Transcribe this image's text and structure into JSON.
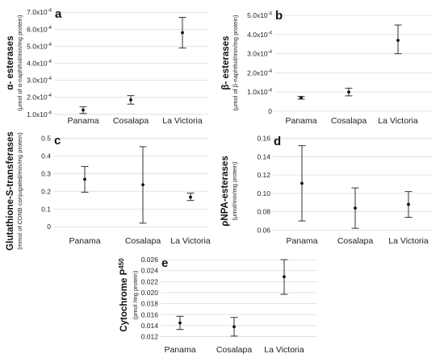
{
  "chart_data": [
    {
      "panel": "a",
      "type": "scatter",
      "ylabel": "α- esterases",
      "ylabel_unit": "(μmol of α-naphthol/min/mg protein)",
      "categories": [
        "Panama",
        "Cosalapa",
        "La Victoria"
      ],
      "ylim": [
        8e-05,
        7e-05
      ],
      "ticks": [
        0.0001,
        0.0002,
        0.0003,
        0.0004,
        0.0005,
        0.0006,
        0.0007
      ],
      "tick_labels": [
        "1.0x10-4",
        "2.0x10-4",
        "3.0x10-4",
        "4.0x10-4",
        "5.0x10-4",
        "6.0x10-4",
        "7.0x10-4"
      ],
      "means": [
        0.000125,
        0.000185,
        0.00058
      ],
      "lower": [
        0.000105,
        0.00016,
        0.00049
      ],
      "upper": [
        0.000145,
        0.00021,
        0.00067
      ],
      "grid": true
    },
    {
      "panel": "b",
      "type": "scatter",
      "ylabel": "β- esterases",
      "ylabel_unit": "(μmol of β-naphthol/min/mg protein)",
      "categories": [
        "Panama",
        "Cosalapa",
        "La Victoria"
      ],
      "ylim": [
        -3e-05,
        0.00053
      ],
      "ticks": [
        0,
        0.0001,
        0.0002,
        0.0003,
        0.0004,
        0.0005
      ],
      "tick_labels": [
        "0",
        "1.0x10-4",
        "2.0x10-4",
        "3.0x10-4",
        "4.0x10-4",
        "5.0x10-4"
      ],
      "means": [
        7e-05,
        0.0001,
        0.00037
      ],
      "lower": [
        6.3e-05,
        8e-05,
        0.0003
      ],
      "upper": [
        7.7e-05,
        0.00012,
        0.00045
      ],
      "grid": true
    },
    {
      "panel": "c",
      "type": "scatter",
      "ylabel": "Glutathione-S-transferases",
      "ylabel_unit": "(mmol of CDNB conjugated/min/mg protein)",
      "categories": [
        "Panama",
        "Cosalapa",
        "La Victoria"
      ],
      "ylim": [
        -0.04,
        0.52
      ],
      "ticks": [
        0,
        0.1,
        0.2,
        0.3,
        0.4,
        0.5
      ],
      "tick_labels": [
        "0",
        "0.1",
        "0.2",
        "0.3",
        "0.4",
        "0.5"
      ],
      "means": [
        0.268,
        0.237,
        0.167
      ],
      "lower": [
        0.195,
        0.02,
        0.148
      ],
      "upper": [
        0.34,
        0.452,
        0.19
      ],
      "grid": true
    },
    {
      "panel": "d",
      "type": "scatter",
      "ylabel": "ρNPA-esterases",
      "ylabel_unit": "(μmol/min/mg protein)",
      "categories": [
        "Panama",
        "Cosalapa",
        "La Victoria"
      ],
      "ylim": [
        0.056,
        0.164
      ],
      "ticks": [
        0.06,
        0.08,
        0.1,
        0.12,
        0.14,
        0.16
      ],
      "tick_labels": [
        "0.06",
        "0.08",
        "0.10",
        "0.12",
        "0.14",
        "0.16"
      ],
      "means": [
        0.111,
        0.084,
        0.088
      ],
      "lower": [
        0.07,
        0.062,
        0.074
      ],
      "upper": [
        0.152,
        0.106,
        0.102
      ],
      "grid": true
    },
    {
      "panel": "e",
      "type": "scatter",
      "ylabel": "Cytochrome P",
      "ylabel_sup": "450",
      "ylabel_unit": "(pmol /mg protein)",
      "categories": [
        "Panama",
        "Cosalapa",
        "La Victoria"
      ],
      "ylim": [
        0.0112,
        0.0266
      ],
      "ticks": [
        0.012,
        0.014,
        0.016,
        0.018,
        0.02,
        0.022,
        0.024,
        0.026
      ],
      "tick_labels": [
        "0.012",
        "0.014",
        "0.016",
        "0.018",
        "0.020",
        "0.022",
        "0.024",
        "0.026"
      ],
      "means": [
        0.0145,
        0.0138,
        0.0229
      ],
      "lower": [
        0.0133,
        0.0121,
        0.0197
      ],
      "upper": [
        0.0157,
        0.0155,
        0.026
      ],
      "grid": true
    }
  ]
}
